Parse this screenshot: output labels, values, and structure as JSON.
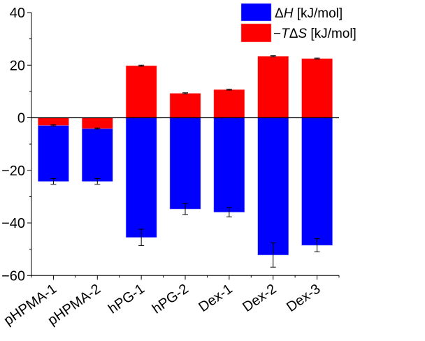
{
  "chart_data": {
    "type": "bar",
    "stacking": "overlaid from zero",
    "categories": [
      "pHPMA-1",
      "pHPMA-2",
      "hPG-1",
      "hPG-2",
      "Dex-1",
      "Dex-2",
      "Dex-3"
    ],
    "series": [
      {
        "name": "ΔH [kJ/mol]",
        "name_parts": {
          "delta": "Δ",
          "var": "H",
          "unit": " [kJ/mol]"
        },
        "color": "#0000ff",
        "values": [
          -24.2,
          -24.2,
          -45.5,
          -34.7,
          -35.9,
          -52.2,
          -48.5
        ],
        "errors": [
          1.1,
          1.1,
          3.1,
          2.1,
          1.8,
          4.6,
          2.5
        ]
      },
      {
        "name": "−TΔS [kJ/mol]",
        "name_parts": {
          "minus": "−",
          "var": "T",
          "delta": "Δ",
          "var2": "S",
          "unit": " [kJ/mol]"
        },
        "color": "#ff0000",
        "values": [
          -2.9,
          -4.1,
          19.8,
          9.3,
          10.7,
          23.4,
          22.5
        ],
        "errors": [
          0.2,
          0.2,
          0.2,
          0.2,
          0.2,
          0.2,
          0.2
        ]
      }
    ],
    "yticks": [
      40,
      20,
      0,
      -20,
      -40,
      -60
    ],
    "ytick_labels": [
      "40",
      "20",
      "0",
      "−20",
      "−40",
      "−60"
    ],
    "ylim": [
      -60,
      40
    ],
    "xlabel": "",
    "ylabel": "",
    "legend": "top-right",
    "grid": false
  }
}
